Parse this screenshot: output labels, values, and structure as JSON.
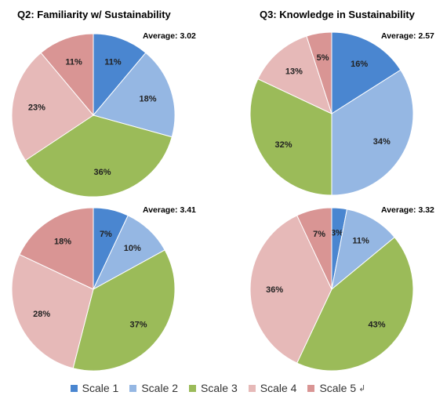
{
  "legend_mark": "↲",
  "chart_data": [
    {
      "type": "pie",
      "title": "Q2: Familiarity w/ Sustainability",
      "annotation": "Average: 3.02",
      "categories": [
        "Scale 1",
        "Scale 2",
        "Scale 3",
        "Scale 4",
        "Scale 5"
      ],
      "values": [
        11,
        18,
        36,
        23,
        11
      ],
      "labels": [
        "11%",
        "18%",
        "36%",
        "23%",
        "11%"
      ],
      "colors": [
        "#4a86d0",
        "#95b7e3",
        "#9bbb59",
        "#e6b9b8",
        "#d99594"
      ]
    },
    {
      "type": "pie",
      "title": "Q3: Knowledge in Sustainability",
      "annotation": "Average: 2.57",
      "categories": [
        "Scale 1",
        "Scale 2",
        "Scale 3",
        "Scale 4",
        "Scale 5"
      ],
      "values": [
        16,
        34,
        32,
        13,
        5
      ],
      "labels": [
        "16%",
        "34%",
        "32%",
        "13%",
        "5%"
      ],
      "colors": [
        "#4a86d0",
        "#95b7e3",
        "#9bbb59",
        "#e6b9b8",
        "#d99594"
      ]
    },
    {
      "type": "pie",
      "title": "",
      "annotation": "Average: 3.41",
      "categories": [
        "Scale 1",
        "Scale 2",
        "Scale 3",
        "Scale 4",
        "Scale 5"
      ],
      "values": [
        7,
        10,
        37,
        28,
        18
      ],
      "labels": [
        "7%",
        "10%",
        "37%",
        "28%",
        "18%"
      ],
      "colors": [
        "#4a86d0",
        "#95b7e3",
        "#9bbb59",
        "#e6b9b8",
        "#d99594"
      ]
    },
    {
      "type": "pie",
      "title": "",
      "annotation": "Average: 3.32",
      "categories": [
        "Scale 1",
        "Scale 2",
        "Scale 3",
        "Scale 4",
        "Scale 5"
      ],
      "values": [
        3,
        11,
        43,
        36,
        7
      ],
      "labels": [
        "3%",
        "11%",
        "43%",
        "36%",
        "7%"
      ],
      "colors": [
        "#4a86d0",
        "#95b7e3",
        "#9bbb59",
        "#e6b9b8",
        "#d99594"
      ]
    }
  ],
  "legend": [
    {
      "label": "Scale 1",
      "color": "#4a86d0"
    },
    {
      "label": "Scale 2",
      "color": "#95b7e3"
    },
    {
      "label": "Scale 3",
      "color": "#9bbb59"
    },
    {
      "label": "Scale 4",
      "color": "#e6b9b8"
    },
    {
      "label": "Scale 5",
      "color": "#d99594"
    }
  ]
}
